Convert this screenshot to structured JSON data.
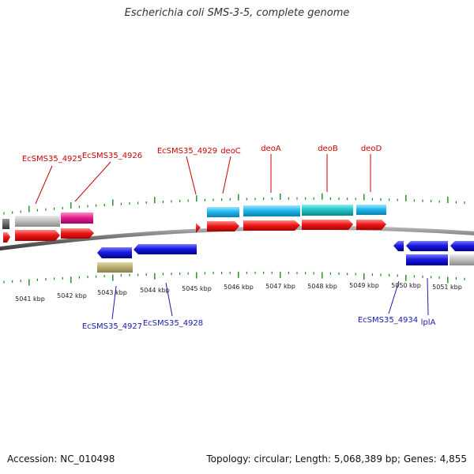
{
  "title": "Escherichia coli SMS-3-5, complete genome",
  "footer": {
    "accession": "Accession: NC_010498",
    "summary": "Topology: circular; Length: 5,068,389 bp; Genes: 4,855"
  },
  "colors": {
    "forward_cds": "#e8141e",
    "reverse_cds": "#1a1ad8",
    "gene_light_blue": "#1fb6ea",
    "gene_teal": "#1ec0c0",
    "gene_gray": "#bcbcbc",
    "gene_magenta": "#e0208e",
    "gene_khaki": "#b7ad74",
    "tick_green": "#1a8a1a",
    "backbone": "#888888",
    "label_forward": "#cc0000",
    "label_reverse": "#1a1aaa"
  },
  "scale_labels": [
    "5041 kbp",
    "5042 kbp",
    "5043 kbp",
    "5044 kbp",
    "5045 kbp",
    "5046 kbp",
    "5047 kbp",
    "5048 kbp",
    "5049 kbp",
    "5050 kbp",
    "5051 kbp"
  ],
  "gene_labels_forward": [
    "EcSMS35_4925",
    "EcSMS35_4926",
    "EcSMS35_4929",
    "deoC",
    "deoA",
    "deoB",
    "deoD"
  ],
  "gene_labels_reverse": [
    "EcSMS35_4927",
    "EcSMS35_4928",
    "EcSMS35_4934",
    "lplA"
  ]
}
